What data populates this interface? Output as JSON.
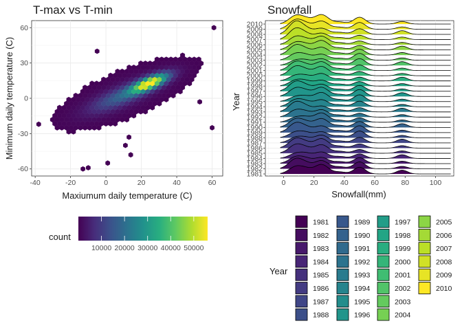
{
  "chart_data": [
    {
      "type": "heatmap",
      "subtype": "hexbin",
      "title": "T-max vs T-min",
      "xlabel": "Maxiumum daily temperature (C)",
      "ylabel": "Minimum daily temperature (C)",
      "xlim": [
        -42,
        66
      ],
      "ylim": [
        -66,
        66
      ],
      "x_ticks": [
        -40,
        -20,
        0,
        20,
        40,
        60
      ],
      "y_ticks": [
        -60,
        -30,
        0,
        30,
        60
      ],
      "grid": true,
      "colormap": "viridis",
      "legend": {
        "title": "count",
        "placement": "bottom",
        "ticks": [
          10000,
          20000,
          30000,
          40000,
          50000
        ],
        "range": [
          0,
          56000
        ]
      },
      "colors": {
        "low": "#440154",
        "high": "#fde725"
      },
      "outliers": [
        {
          "x": 61,
          "y": 60
        },
        {
          "x": 60,
          "y": -25
        },
        {
          "x": -13,
          "y": -60
        },
        {
          "x": -10,
          "y": -59
        },
        {
          "x": 1,
          "y": -55
        },
        {
          "x": 14,
          "y": -48
        },
        {
          "x": 11,
          "y": -40
        },
        {
          "x": -38,
          "y": -22
        },
        {
          "x": 53,
          "y": -3
        },
        {
          "x": -5,
          "y": 40
        },
        {
          "x": 13,
          "y": -33
        }
      ]
    },
    {
      "type": "area",
      "subtype": "ridgeline",
      "title": "Snowfall",
      "xlabel": "Snowfall(mm)",
      "ylabel": "Year",
      "xlim": [
        -12,
        112
      ],
      "x_ticks": [
        0,
        20,
        40,
        60,
        80,
        100
      ],
      "categories": [
        "1981",
        "1982",
        "1983",
        "1984",
        "1985",
        "1986",
        "1987",
        "1988",
        "1989",
        "1990",
        "1991",
        "1992",
        "1993",
        "1994",
        "1995",
        "1996",
        "1997",
        "1998",
        "1999",
        "2000",
        "2001",
        "2002",
        "2003",
        "2004",
        "2005",
        "2006",
        "2007",
        "2008",
        "2009",
        "2010"
      ],
      "peaks_mm": [
        8,
        25,
        50,
        78
      ],
      "fill": "viridis by year",
      "legend": {
        "title": "Year",
        "placement": "bottom"
      }
    }
  ]
}
